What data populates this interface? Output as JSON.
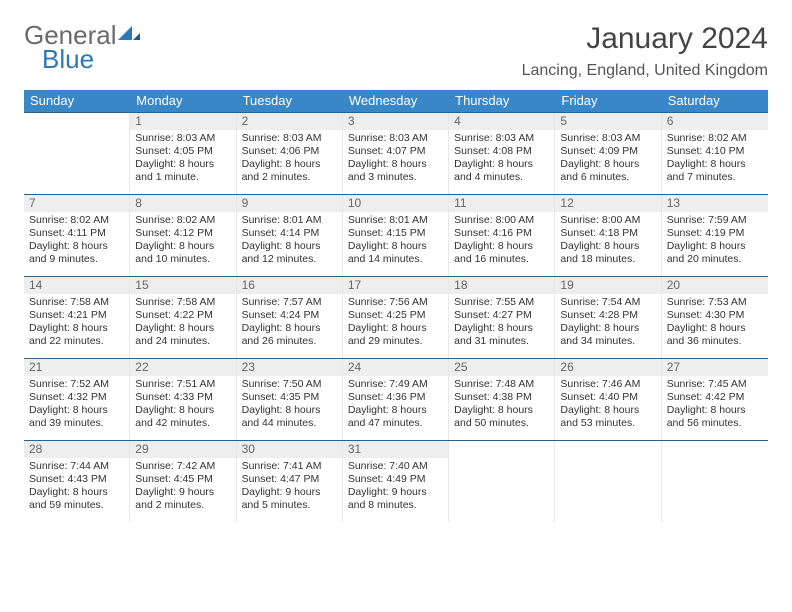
{
  "logo": {
    "word1": "General",
    "word2": "Blue"
  },
  "title": "January 2024",
  "location": "Lancing, England, United Kingdom",
  "colors": {
    "header_bar": "#3a87c8",
    "week_divider": "#2f5f8a",
    "daynum_bg": "#eeeeee",
    "logo_blue": "#2f78b7",
    "logo_gray": "#6b6b6b"
  },
  "weekdays": [
    "Sunday",
    "Monday",
    "Tuesday",
    "Wednesday",
    "Thursday",
    "Friday",
    "Saturday"
  ],
  "weeks": [
    [
      {
        "n": "",
        "empty": true
      },
      {
        "n": "1",
        "sunrise": "8:03 AM",
        "sunset": "4:05 PM",
        "daylight": "8 hours and 1 minute."
      },
      {
        "n": "2",
        "sunrise": "8:03 AM",
        "sunset": "4:06 PM",
        "daylight": "8 hours and 2 minutes."
      },
      {
        "n": "3",
        "sunrise": "8:03 AM",
        "sunset": "4:07 PM",
        "daylight": "8 hours and 3 minutes."
      },
      {
        "n": "4",
        "sunrise": "8:03 AM",
        "sunset": "4:08 PM",
        "daylight": "8 hours and 4 minutes."
      },
      {
        "n": "5",
        "sunrise": "8:03 AM",
        "sunset": "4:09 PM",
        "daylight": "8 hours and 6 minutes."
      },
      {
        "n": "6",
        "sunrise": "8:02 AM",
        "sunset": "4:10 PM",
        "daylight": "8 hours and 7 minutes."
      }
    ],
    [
      {
        "n": "7",
        "sunrise": "8:02 AM",
        "sunset": "4:11 PM",
        "daylight": "8 hours and 9 minutes."
      },
      {
        "n": "8",
        "sunrise": "8:02 AM",
        "sunset": "4:12 PM",
        "daylight": "8 hours and 10 minutes."
      },
      {
        "n": "9",
        "sunrise": "8:01 AM",
        "sunset": "4:14 PM",
        "daylight": "8 hours and 12 minutes."
      },
      {
        "n": "10",
        "sunrise": "8:01 AM",
        "sunset": "4:15 PM",
        "daylight": "8 hours and 14 minutes."
      },
      {
        "n": "11",
        "sunrise": "8:00 AM",
        "sunset": "4:16 PM",
        "daylight": "8 hours and 16 minutes."
      },
      {
        "n": "12",
        "sunrise": "8:00 AM",
        "sunset": "4:18 PM",
        "daylight": "8 hours and 18 minutes."
      },
      {
        "n": "13",
        "sunrise": "7:59 AM",
        "sunset": "4:19 PM",
        "daylight": "8 hours and 20 minutes."
      }
    ],
    [
      {
        "n": "14",
        "sunrise": "7:58 AM",
        "sunset": "4:21 PM",
        "daylight": "8 hours and 22 minutes."
      },
      {
        "n": "15",
        "sunrise": "7:58 AM",
        "sunset": "4:22 PM",
        "daylight": "8 hours and 24 minutes."
      },
      {
        "n": "16",
        "sunrise": "7:57 AM",
        "sunset": "4:24 PM",
        "daylight": "8 hours and 26 minutes."
      },
      {
        "n": "17",
        "sunrise": "7:56 AM",
        "sunset": "4:25 PM",
        "daylight": "8 hours and 29 minutes."
      },
      {
        "n": "18",
        "sunrise": "7:55 AM",
        "sunset": "4:27 PM",
        "daylight": "8 hours and 31 minutes."
      },
      {
        "n": "19",
        "sunrise": "7:54 AM",
        "sunset": "4:28 PM",
        "daylight": "8 hours and 34 minutes."
      },
      {
        "n": "20",
        "sunrise": "7:53 AM",
        "sunset": "4:30 PM",
        "daylight": "8 hours and 36 minutes."
      }
    ],
    [
      {
        "n": "21",
        "sunrise": "7:52 AM",
        "sunset": "4:32 PM",
        "daylight": "8 hours and 39 minutes."
      },
      {
        "n": "22",
        "sunrise": "7:51 AM",
        "sunset": "4:33 PM",
        "daylight": "8 hours and 42 minutes."
      },
      {
        "n": "23",
        "sunrise": "7:50 AM",
        "sunset": "4:35 PM",
        "daylight": "8 hours and 44 minutes."
      },
      {
        "n": "24",
        "sunrise": "7:49 AM",
        "sunset": "4:36 PM",
        "daylight": "8 hours and 47 minutes."
      },
      {
        "n": "25",
        "sunrise": "7:48 AM",
        "sunset": "4:38 PM",
        "daylight": "8 hours and 50 minutes."
      },
      {
        "n": "26",
        "sunrise": "7:46 AM",
        "sunset": "4:40 PM",
        "daylight": "8 hours and 53 minutes."
      },
      {
        "n": "27",
        "sunrise": "7:45 AM",
        "sunset": "4:42 PM",
        "daylight": "8 hours and 56 minutes."
      }
    ],
    [
      {
        "n": "28",
        "sunrise": "7:44 AM",
        "sunset": "4:43 PM",
        "daylight": "8 hours and 59 minutes."
      },
      {
        "n": "29",
        "sunrise": "7:42 AM",
        "sunset": "4:45 PM",
        "daylight": "9 hours and 2 minutes."
      },
      {
        "n": "30",
        "sunrise": "7:41 AM",
        "sunset": "4:47 PM",
        "daylight": "9 hours and 5 minutes."
      },
      {
        "n": "31",
        "sunrise": "7:40 AM",
        "sunset": "4:49 PM",
        "daylight": "9 hours and 8 minutes."
      },
      {
        "n": "",
        "empty": true
      },
      {
        "n": "",
        "empty": true
      },
      {
        "n": "",
        "empty": true
      }
    ]
  ],
  "labels": {
    "sunrise": "Sunrise:",
    "sunset": "Sunset:",
    "daylight": "Daylight:"
  }
}
